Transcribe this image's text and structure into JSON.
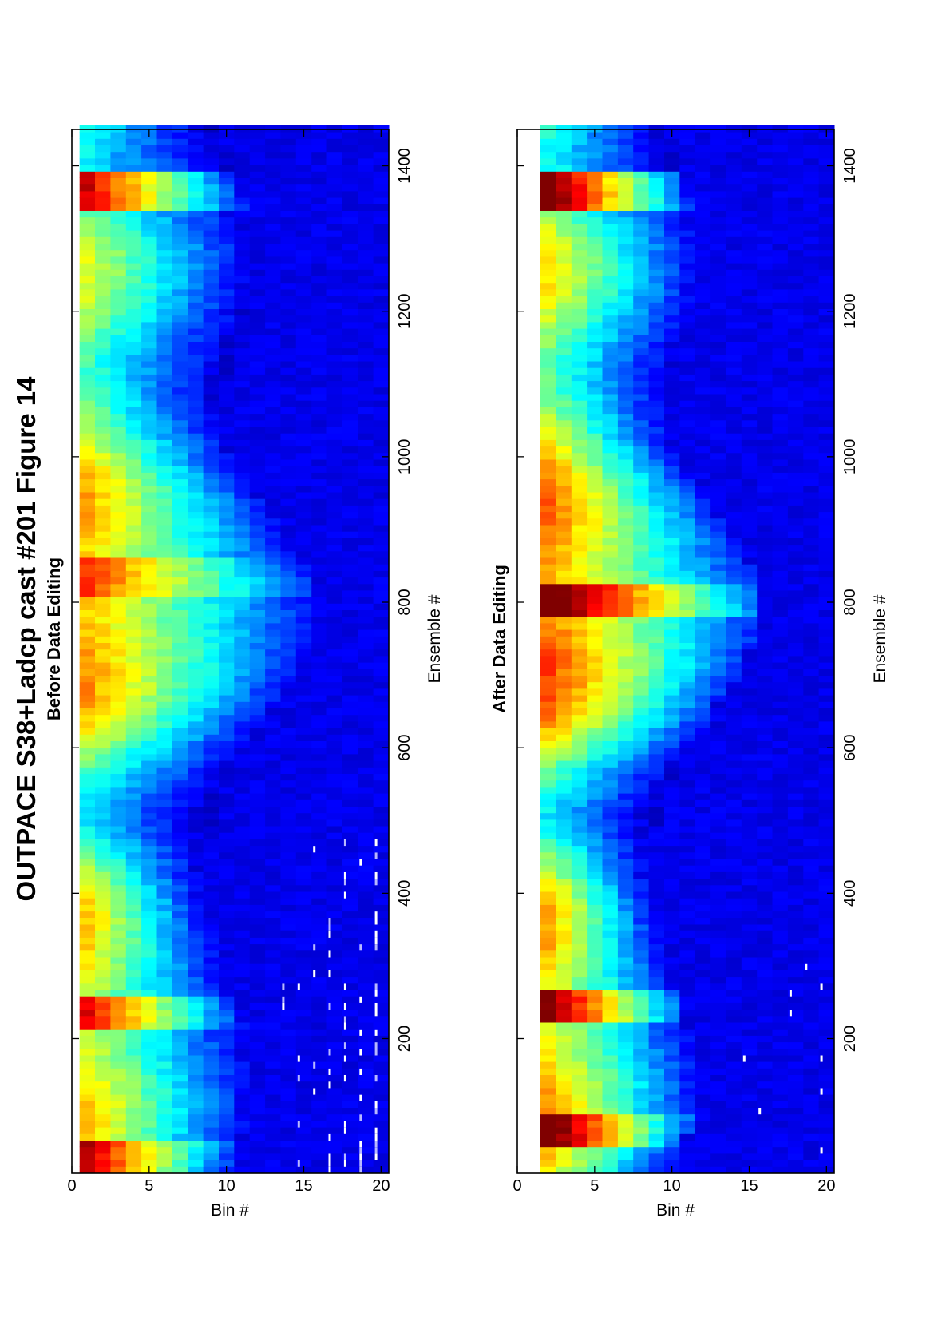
{
  "figure": {
    "title": "OUTPACE S38+Ladcp cast #201  Figure 14"
  },
  "chart_data": [
    {
      "type": "heatmap",
      "title": "Before Data Editing",
      "xlabel": "Ensemble #",
      "ylabel": "Bin #",
      "xlim": [
        15,
        1450
      ],
      "ylim": [
        0,
        20.5
      ],
      "xticks": [
        "200",
        "400",
        "600",
        "800",
        "1000",
        "1200",
        "1400"
      ],
      "yticks": [
        "0",
        "5",
        "10",
        "15",
        "20"
      ],
      "colormap": "jet",
      "bins": 20,
      "near_surface_bin": 1,
      "deep_gap_ensembles": [
        0,
        470
      ],
      "surface_intensity": 0.72,
      "bright_ensembles": [
        [
          35,
          0.95
        ],
        [
          230,
          0.9
        ],
        [
          830,
          0.82
        ],
        [
          1360,
          0.92
        ]
      ],
      "missing_data_density": 0.3,
      "grid": false
    },
    {
      "type": "heatmap",
      "title": "After Data Editing",
      "xlabel": "Ensemble #",
      "ylabel": "Bin #",
      "xlim": [
        15,
        1450
      ],
      "ylim": [
        0,
        20.5
      ],
      "xticks": [
        "200",
        "400",
        "600",
        "800",
        "1000",
        "1200",
        "1400"
      ],
      "yticks": [
        "0",
        "5",
        "10",
        "15",
        "20"
      ],
      "colormap": "jet",
      "bins": 20,
      "near_surface_bin": 2,
      "deep_gap_ensembles": [
        0,
        420
      ],
      "surface_intensity": 0.85,
      "bright_ensembles": [
        [
          70,
          1.0
        ],
        [
          240,
          0.95
        ],
        [
          800,
          0.97
        ],
        [
          1360,
          0.98
        ]
      ],
      "missing_data_density": 0.08,
      "grid": false
    }
  ]
}
